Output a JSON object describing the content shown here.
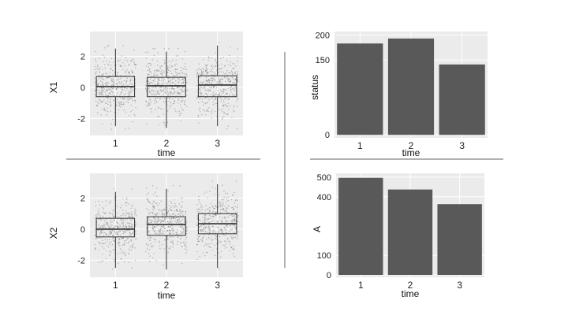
{
  "chart_data": [
    {
      "type": "boxplot",
      "xlabel": "time",
      "ylabel": "X1",
      "categories": [
        "1",
        "2",
        "3"
      ],
      "ylim": [
        -3.1,
        3.6
      ],
      "yticks": [
        -2,
        0,
        2
      ],
      "ytick_labels": [
        "-2",
        "0",
        "2"
      ],
      "grid": true,
      "jitter_points": true,
      "boxes": [
        {
          "q1": -0.6,
          "median": 0.05,
          "q3": 0.7,
          "whisker_low": -2.5,
          "whisker_high": 2.5
        },
        {
          "q1": -0.6,
          "median": 0.1,
          "q3": 0.65,
          "whisker_low": -2.6,
          "whisker_high": 2.3
        },
        {
          "q1": -0.6,
          "median": 0.15,
          "q3": 0.75,
          "whisker_low": -2.5,
          "whisker_high": 2.7
        }
      ]
    },
    {
      "type": "bar",
      "xlabel": "time",
      "ylabel": "status",
      "categories": [
        "1",
        "2",
        "3"
      ],
      "values": [
        183,
        193,
        141
      ],
      "ylim": [
        -6,
        207
      ],
      "yticks": [
        0,
        150,
        200
      ],
      "ytick_labels": [
        "0",
        "150",
        "200"
      ],
      "grid": true,
      "bar_color": "#595959"
    },
    {
      "type": "boxplot",
      "xlabel": "time",
      "ylabel": "X2",
      "categories": [
        "1",
        "2",
        "3"
      ],
      "ylim": [
        -3.1,
        3.6
      ],
      "yticks": [
        -2,
        0,
        2
      ],
      "ytick_labels": [
        "-2",
        "0",
        "2"
      ],
      "grid": true,
      "jitter_points": true,
      "boxes": [
        {
          "q1": -0.5,
          "median": 0.0,
          "q3": 0.7,
          "whisker_low": -2.5,
          "whisker_high": 2.4
        },
        {
          "q1": -0.4,
          "median": 0.3,
          "q3": 0.8,
          "whisker_low": -2.6,
          "whisker_high": 2.6
        },
        {
          "q1": -0.3,
          "median": 0.35,
          "q3": 1.0,
          "whisker_low": -2.5,
          "whisker_high": 2.9
        }
      ]
    },
    {
      "type": "bar",
      "xlabel": "time",
      "ylabel": "A",
      "categories": [
        "1",
        "2",
        "3"
      ],
      "values": [
        497,
        437,
        362
      ],
      "ylim": [
        -12,
        520
      ],
      "yticks": [
        0,
        100,
        400,
        500
      ],
      "ytick_labels": [
        "0",
        "100",
        "400",
        "500"
      ],
      "grid": true,
      "bar_color": "#595959"
    }
  ]
}
